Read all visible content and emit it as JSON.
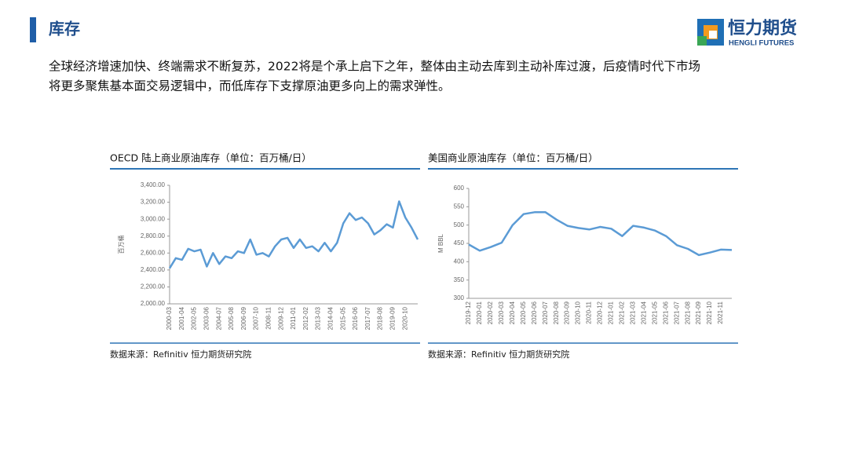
{
  "header": {
    "title": "库存",
    "logo_cn": "恒力期货",
    "logo_en": "HENGLI FUTURES"
  },
  "paragraph": [
    "全球经济增速加快、终端需求不断复苏，2022将是个承上启下之年，整体由主动去库到主动补库过渡，后疫情时代下市场",
    "将更多聚焦基本面交易逻辑中，而低库存下支撑原油更多向上的需求弹性。"
  ],
  "chart_data": [
    {
      "type": "line",
      "title": "OECD 陆上商业原油库存（单位：百万桶/日）",
      "y_label": "百万桶",
      "source": "数据来源：Refinitiv 恒力期货研究院",
      "x": [
        "2000-03",
        null,
        "2001-04",
        null,
        "2002-05",
        null,
        "2003-06",
        null,
        "2004-07",
        null,
        "2005-08",
        null,
        "2006-09",
        null,
        "2007-10",
        null,
        "2008-11",
        null,
        "2009-12",
        null,
        "2011-01",
        null,
        "2012-02",
        null,
        "2013-03",
        null,
        "2014-04",
        null,
        "2015-05",
        null,
        "2016-06",
        null,
        "2017-07",
        null,
        "2018-08",
        null,
        "2019-09",
        null,
        "2020-10",
        null,
        null
      ],
      "values": [
        2420,
        2540,
        2520,
        2650,
        2620,
        2640,
        2440,
        2600,
        2470,
        2560,
        2540,
        2620,
        2600,
        2760,
        2580,
        2600,
        2560,
        2680,
        2760,
        2780,
        2660,
        2760,
        2660,
        2680,
        2620,
        2720,
        2620,
        2720,
        2950,
        3070,
        2990,
        3020,
        2950,
        2820,
        2870,
        2940,
        2900,
        3210,
        3020,
        2900,
        2760
      ],
      "color": "#5b9bd5",
      "ylim": [
        2000,
        3400
      ],
      "yticks": [
        {
          "value": 2000,
          "label": "2,000.00"
        },
        {
          "value": 2200,
          "label": "2,200.00"
        },
        {
          "value": 2400,
          "label": "2,400.00"
        },
        {
          "value": 2600,
          "label": "2,600.00"
        },
        {
          "value": 2800,
          "label": "2,800.00"
        },
        {
          "value": 3000,
          "label": "3,000.00"
        },
        {
          "value": 3200,
          "label": "3,200.00"
        },
        {
          "value": 3400,
          "label": "3,400.00"
        }
      ]
    },
    {
      "type": "line",
      "title": "美国商业原油库存（单位：百万桶/日）",
      "y_label": "M BBL",
      "source": "数据来源：Refinitiv 恒力期货研究院",
      "x": [
        "2019-12",
        "2020-01",
        "2020-02",
        "2020-03",
        "2020-04",
        "2020-05",
        "2020-06",
        "2020-07",
        "2020-08",
        "2020-09",
        "2020-10",
        "2020-11",
        "2020-12",
        "2021-01",
        "2021-02",
        "2021-03",
        "2021-04",
        "2021-05",
        "2021-06",
        "2021-07",
        "2021-08",
        "2021-09",
        "2021-10",
        "2021-11",
        null
      ],
      "values": [
        447,
        430,
        440,
        452,
        500,
        530,
        535,
        535,
        515,
        498,
        492,
        488,
        495,
        490,
        470,
        498,
        493,
        485,
        470,
        445,
        435,
        418,
        425,
        433,
        432
      ],
      "color": "#5b9bd5",
      "ylim": [
        300,
        600
      ],
      "yticks": [
        300,
        350,
        400,
        450,
        500,
        550,
        600
      ]
    }
  ]
}
